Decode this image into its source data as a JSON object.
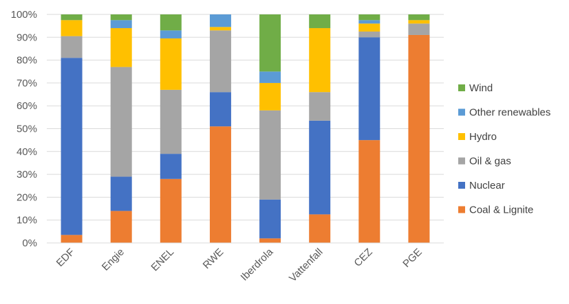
{
  "chart_data": {
    "type": "bar",
    "stacked": true,
    "categories": [
      "EDF",
      "Engie",
      "ENEL",
      "RWE",
      "Iberdrola",
      "Vattenfall",
      "CEZ",
      "PGE"
    ],
    "series": [
      {
        "name": "Coal & Lignite",
        "color": "#ED7D31",
        "values": [
          3.5,
          14,
          28,
          51,
          2,
          12.5,
          45,
          91
        ]
      },
      {
        "name": "Nuclear",
        "color": "#4472C4",
        "values": [
          77.5,
          15,
          11,
          15,
          17,
          41,
          45,
          0
        ]
      },
      {
        "name": "Oil & gas",
        "color": "#A5A5A5",
        "values": [
          9.5,
          48,
          28,
          27,
          39,
          12.5,
          2.5,
          5
        ]
      },
      {
        "name": "Hydro",
        "color": "#FFC000",
        "values": [
          7,
          17,
          22.5,
          1.5,
          12,
          28,
          3.5,
          1.5
        ]
      },
      {
        "name": "Other renewables",
        "color": "#5B9BD5",
        "values": [
          0,
          3.5,
          3.5,
          5.5,
          5,
          0,
          1.5,
          0
        ]
      },
      {
        "name": "Wind",
        "color": "#70AD47",
        "values": [
          2.5,
          2.5,
          7,
          0,
          25,
          6,
          2.5,
          2.5
        ]
      }
    ],
    "yticks": [
      "0%",
      "10%",
      "20%",
      "30%",
      "40%",
      "50%",
      "60%",
      "70%",
      "80%",
      "90%",
      "100%"
    ],
    "ylim": [
      0,
      100
    ],
    "grid": true,
    "legend_position": "right"
  }
}
